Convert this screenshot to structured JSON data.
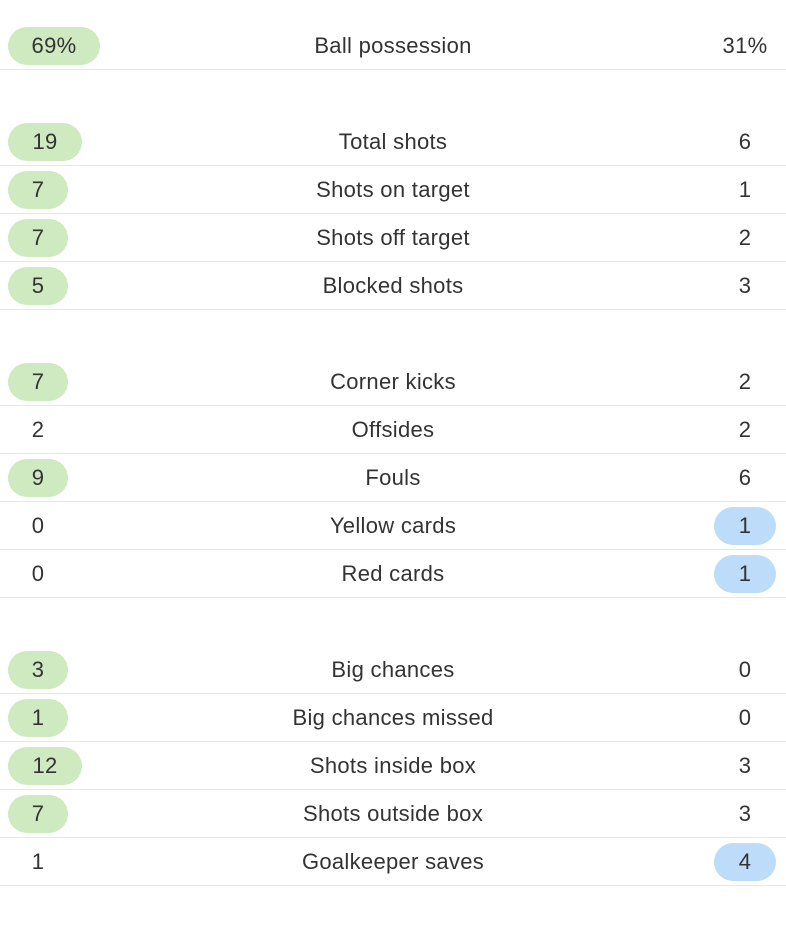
{
  "colors": {
    "home_highlight": "#cfe9c0",
    "away_highlight": "#bcdcfa",
    "divider": "#e6e6e6",
    "text": "#333333"
  },
  "groups": [
    {
      "rows": [
        {
          "label": "Ball possession",
          "home": "69%",
          "away": "31%",
          "highlight": "home"
        }
      ]
    },
    {
      "rows": [
        {
          "label": "Total shots",
          "home": "19",
          "away": "6",
          "highlight": "home"
        },
        {
          "label": "Shots on target",
          "home": "7",
          "away": "1",
          "highlight": "home"
        },
        {
          "label": "Shots off target",
          "home": "7",
          "away": "2",
          "highlight": "home"
        },
        {
          "label": "Blocked shots",
          "home": "5",
          "away": "3",
          "highlight": "home"
        }
      ]
    },
    {
      "rows": [
        {
          "label": "Corner kicks",
          "home": "7",
          "away": "2",
          "highlight": "home"
        },
        {
          "label": "Offsides",
          "home": "2",
          "away": "2",
          "highlight": "none"
        },
        {
          "label": "Fouls",
          "home": "9",
          "away": "6",
          "highlight": "home"
        },
        {
          "label": "Yellow cards",
          "home": "0",
          "away": "1",
          "highlight": "away"
        },
        {
          "label": "Red cards",
          "home": "0",
          "away": "1",
          "highlight": "away"
        }
      ]
    },
    {
      "rows": [
        {
          "label": "Big chances",
          "home": "3",
          "away": "0",
          "highlight": "home"
        },
        {
          "label": "Big chances missed",
          "home": "1",
          "away": "0",
          "highlight": "home"
        },
        {
          "label": "Shots inside box",
          "home": "12",
          "away": "3",
          "highlight": "home"
        },
        {
          "label": "Shots outside box",
          "home": "7",
          "away": "3",
          "highlight": "home"
        },
        {
          "label": "Goalkeeper saves",
          "home": "1",
          "away": "4",
          "highlight": "away"
        }
      ]
    }
  ]
}
